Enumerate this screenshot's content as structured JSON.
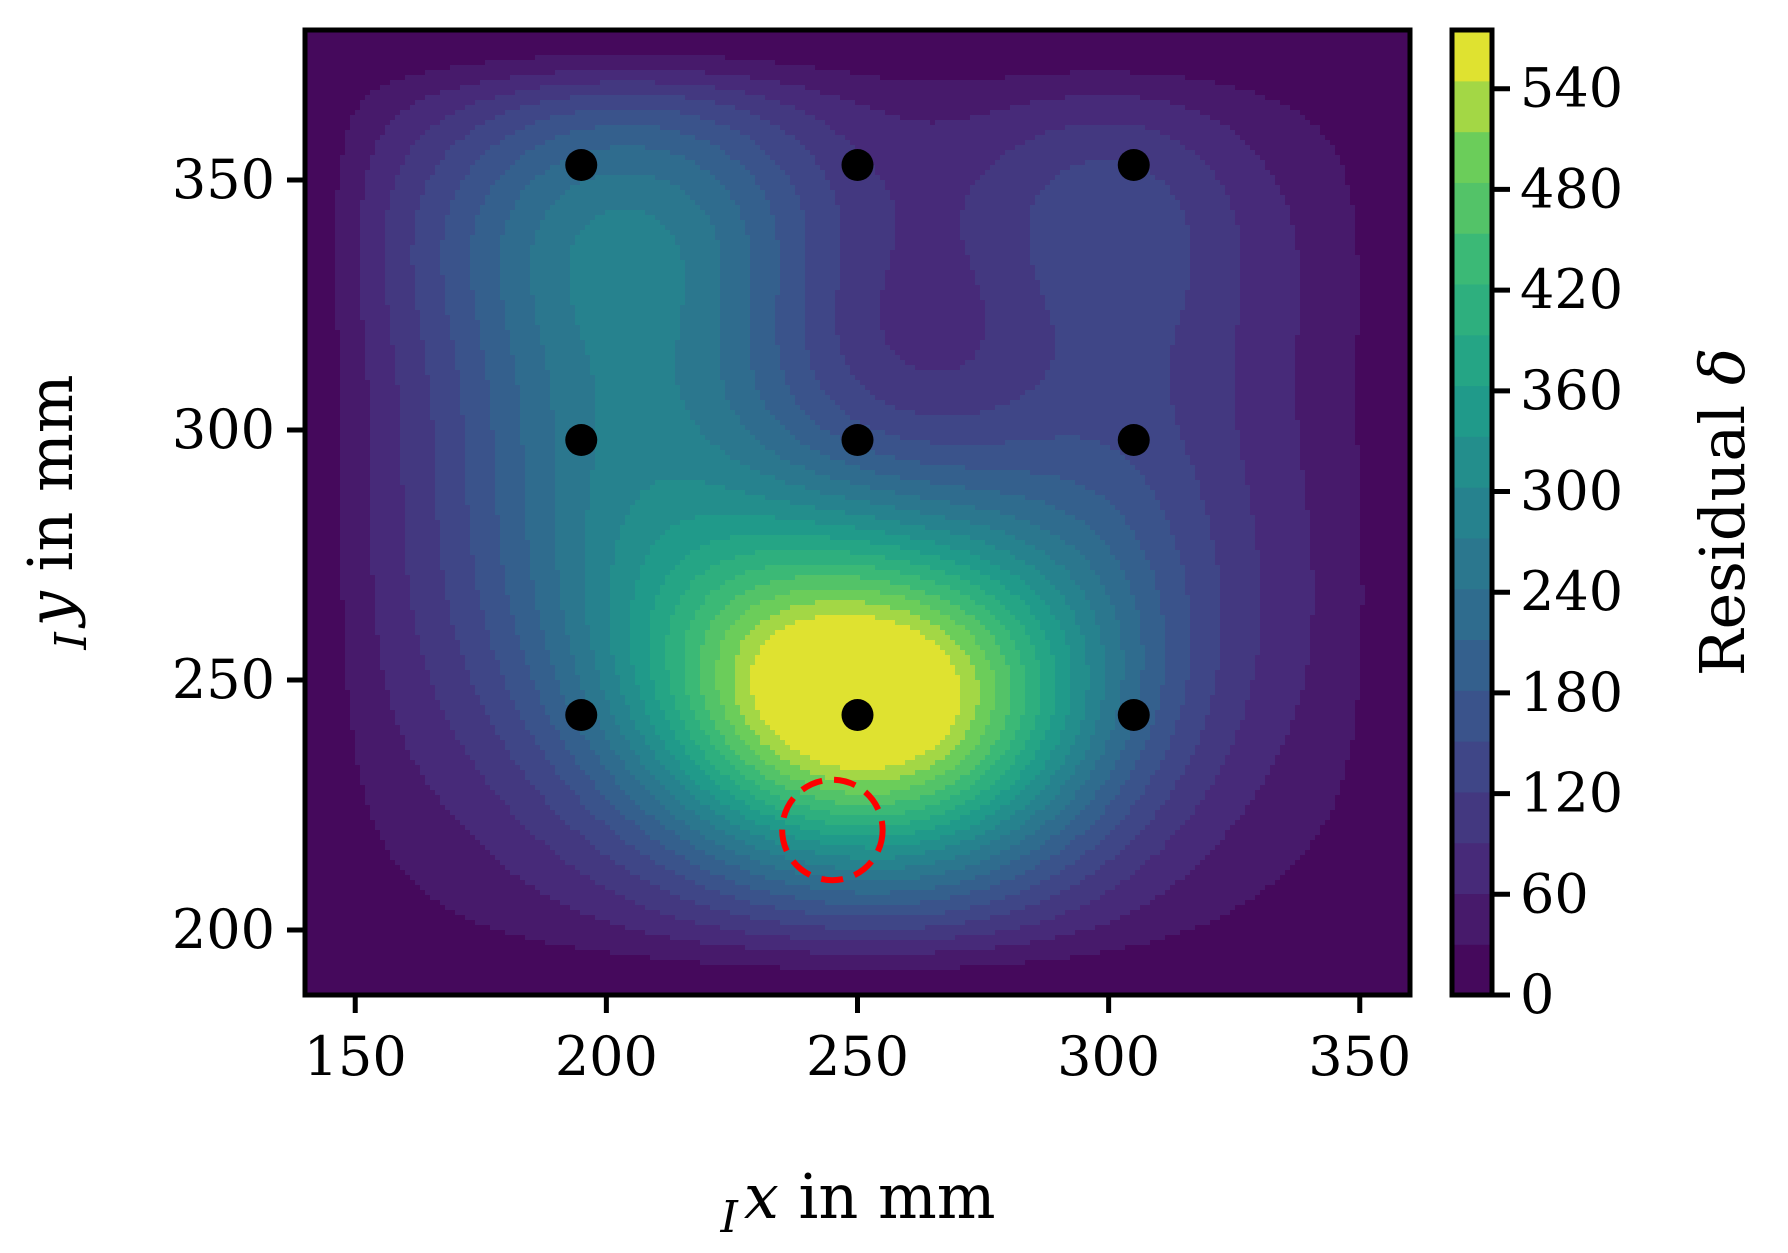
{
  "chart_data": {
    "type": "heatmap",
    "title": "",
    "xlabel": {
      "prefix": "I",
      "var": "x",
      "suffix": " in mm"
    },
    "ylabel": {
      "prefix": "I",
      "var": "y",
      "suffix": " in mm"
    },
    "colorbar_label": {
      "text": "Residual ",
      "symbol": "δ"
    },
    "xlim": [
      140,
      360
    ],
    "ylim": [
      187,
      380
    ],
    "x_ticks": [
      150,
      200,
      250,
      300,
      350
    ],
    "y_ticks": [
      200,
      250,
      300,
      350
    ],
    "colorbar_range": [
      0,
      575
    ],
    "colorbar_ticks": [
      0,
      60,
      120,
      180,
      240,
      300,
      360,
      420,
      480,
      540
    ],
    "colormap": "viridis",
    "grid": false,
    "peak": {
      "x": 257,
      "y": 243,
      "value": 565
    },
    "points": [
      {
        "x": 195,
        "y": 353
      },
      {
        "x": 250,
        "y": 353
      },
      {
        "x": 305,
        "y": 353
      },
      {
        "x": 195,
        "y": 298
      },
      {
        "x": 250,
        "y": 298
      },
      {
        "x": 305,
        "y": 298
      },
      {
        "x": 195,
        "y": 243
      },
      {
        "x": 250,
        "y": 243
      },
      {
        "x": 305,
        "y": 243
      }
    ],
    "marker_circle": {
      "x": 245,
      "y": 220,
      "radius": 10,
      "color": "#ff0000",
      "style": "dashed"
    },
    "point_color": "#000000"
  }
}
